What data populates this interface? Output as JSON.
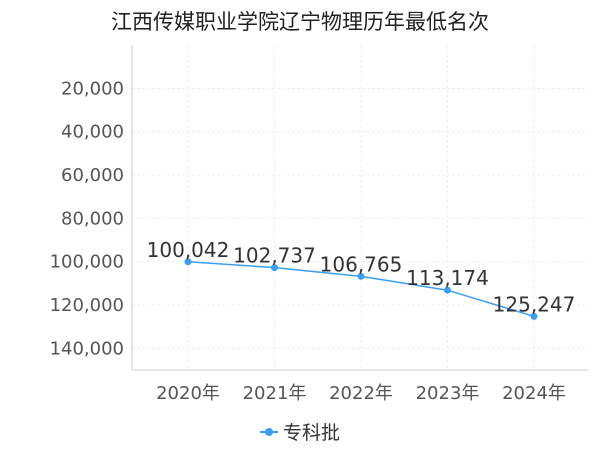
{
  "chart_data": {
    "type": "line",
    "title": "江西传媒职业学院辽宁物理历年最低名次",
    "categories": [
      "2020年",
      "2021年",
      "2022年",
      "2023年",
      "2024年"
    ],
    "series": [
      {
        "name": "专科批",
        "values": [
          100042,
          102737,
          106765,
          113174,
          125247
        ],
        "labels": [
          "100,042",
          "102,737",
          "106,765",
          "113,174",
          "125,247"
        ]
      }
    ],
    "y_ticks": [
      {
        "value": 20000,
        "label": "20,000"
      },
      {
        "value": 40000,
        "label": "40,000"
      },
      {
        "value": 60000,
        "label": "60,000"
      },
      {
        "value": 80000,
        "label": "80,000"
      },
      {
        "value": 100000,
        "label": "100,000"
      },
      {
        "value": 120000,
        "label": "120,000"
      },
      {
        "value": 140000,
        "label": "140,000"
      }
    ],
    "ylim": [
      0,
      150000
    ],
    "y_reversed": true,
    "grid": true,
    "legend_position": "bottom-center",
    "series_color": "#3a9ff5"
  }
}
